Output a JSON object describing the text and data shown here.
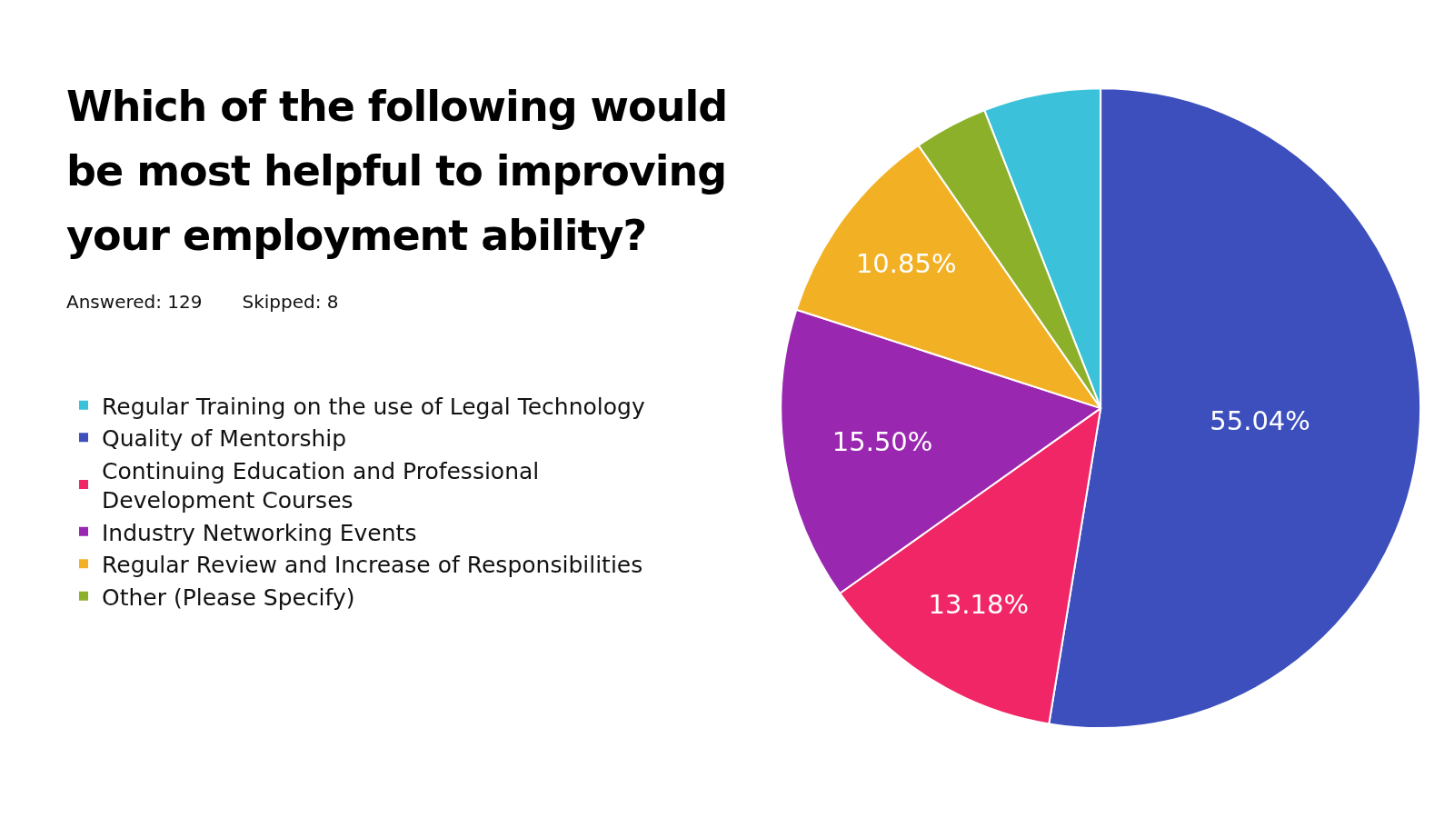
{
  "chart_data": {
    "type": "pie",
    "title": "Which of the following would be most helpful to improving your employment ability?",
    "annotations": [
      "Answered: 129",
      "Skipped: 8"
    ],
    "categories": [
      "Regular Training on the use of Legal Technology",
      "Quality of Mentorship",
      "Continuing Education and Professional Development Courses",
      "Industry Networking Events",
      "Regular Review and Increase of Responsibilities",
      "Other (Please Specify)"
    ],
    "values": [
      6.2,
      55.04,
      13.18,
      15.5,
      10.85,
      3.9
    ],
    "colors": [
      "#3bc1da",
      "#3c4fbc",
      "#f12667",
      "#9a27b0",
      "#f2b125",
      "#8db02a"
    ],
    "value_labels": [
      null,
      "55.04%",
      "13.18%",
      "15.50%",
      "10.85%",
      null
    ],
    "legend": "left"
  }
}
